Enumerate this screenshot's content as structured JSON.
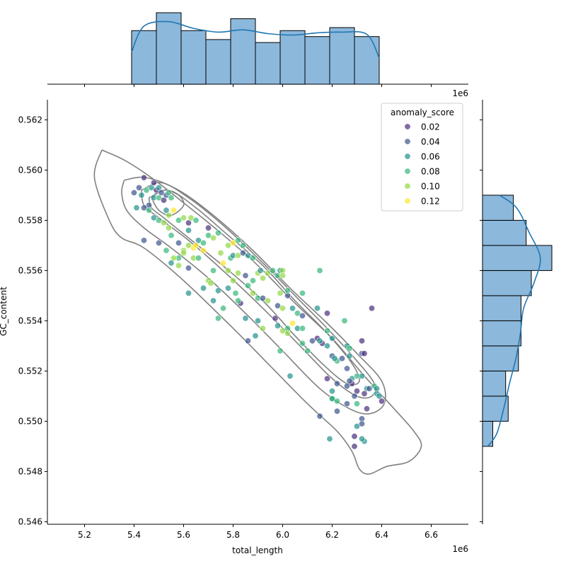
{
  "chart_data": {
    "type": "scatter",
    "xlabel": "total_length",
    "ylabel": "GC_content",
    "x_exponent_label": "1e6",
    "xlim": [
      5.05,
      6.75
    ],
    "ylim": [
      0.5459,
      0.5628
    ],
    "x_scale_factor": 1000000,
    "x_ticks": [
      5.2,
      5.4,
      5.6,
      5.8,
      6.0,
      6.2,
      6.4,
      6.6
    ],
    "x_tick_labels": [
      "5.2",
      "5.4",
      "5.6",
      "5.8",
      "6.0",
      "6.2",
      "6.4",
      "6.6"
    ],
    "y_ticks": [
      0.546,
      0.548,
      0.55,
      0.552,
      0.554,
      0.556,
      0.558,
      0.56,
      0.562
    ],
    "y_tick_labels": [
      "0.546",
      "0.548",
      "0.550",
      "0.552",
      "0.554",
      "0.556",
      "0.558",
      "0.560",
      "0.562"
    ],
    "grid": false,
    "hue": "anomaly_score",
    "colors": {
      "marginal_bar": "#8cb8db",
      "kde_line": "#1f77b4",
      "contour": "#808080",
      "bar_edge": "#000000"
    },
    "legend": {
      "title": "anomaly_score",
      "placement": "top-right",
      "entries": [
        {
          "label": "0.02",
          "value": 0.02,
          "color": "#472d7b"
        },
        {
          "label": "0.04",
          "value": 0.04,
          "color": "#3b528b"
        },
        {
          "label": "0.06",
          "value": 0.06,
          "color": "#21918c"
        },
        {
          "label": "0.08",
          "value": 0.08,
          "color": "#35b779"
        },
        {
          "label": "0.10",
          "value": 0.1,
          "color": "#90d743"
        },
        {
          "label": "0.12",
          "value": 0.12,
          "color": "#fde725"
        }
      ]
    },
    "marginal_x_hist": {
      "bin_edges": [
        5.39,
        5.49,
        5.59,
        5.69,
        5.79,
        5.89,
        5.99,
        6.09,
        6.19,
        6.29,
        6.39
      ],
      "counts": [
        18,
        24,
        18,
        15,
        22,
        14,
        18,
        16,
        19,
        16
      ]
    },
    "marginal_y_hist": {
      "bin_edges": [
        0.549,
        0.55,
        0.551,
        0.552,
        0.553,
        0.554,
        0.555,
        0.556,
        0.557,
        0.558,
        0.559
      ],
      "counts": [
        4,
        10,
        9,
        14,
        15,
        15,
        19,
        27,
        17,
        12
      ]
    },
    "contour_levels": [
      [
        [
          5.27,
          0.5608
        ],
        [
          5.36,
          0.5604
        ],
        [
          5.47,
          0.5597
        ],
        [
          5.6,
          0.5587
        ],
        [
          5.75,
          0.5575
        ],
        [
          5.9,
          0.5562
        ],
        [
          6.05,
          0.5547
        ],
        [
          6.2,
          0.5533
        ],
        [
          6.33,
          0.5518
        ],
        [
          6.45,
          0.5505
        ],
        [
          6.53,
          0.5496
        ],
        [
          6.56,
          0.549
        ],
        [
          6.51,
          0.5484
        ],
        [
          6.42,
          0.5482
        ],
        [
          6.35,
          0.5479
        ],
        [
          6.31,
          0.5481
        ],
        [
          6.28,
          0.5488
        ],
        [
          6.22,
          0.5496
        ],
        [
          6.1,
          0.5507
        ],
        [
          5.95,
          0.5522
        ],
        [
          5.8,
          0.5537
        ],
        [
          5.6,
          0.5556
        ],
        [
          5.44,
          0.5569
        ],
        [
          5.35,
          0.5573
        ],
        [
          5.3,
          0.558
        ],
        [
          5.24,
          0.5597
        ],
        [
          5.27,
          0.5608
        ]
      ],
      [
        [
          5.36,
          0.5596
        ],
        [
          5.45,
          0.5597
        ],
        [
          5.58,
          0.5592
        ],
        [
          5.72,
          0.5582
        ],
        [
          5.88,
          0.5568
        ],
        [
          6.03,
          0.5553
        ],
        [
          6.18,
          0.5539
        ],
        [
          6.3,
          0.5527
        ],
        [
          6.4,
          0.5516
        ],
        [
          6.41,
          0.5507
        ],
        [
          6.35,
          0.5503
        ],
        [
          6.27,
          0.5505
        ],
        [
          6.15,
          0.5513
        ],
        [
          6.0,
          0.5528
        ],
        [
          5.85,
          0.5543
        ],
        [
          5.7,
          0.5557
        ],
        [
          5.55,
          0.5569
        ],
        [
          5.44,
          0.5577
        ],
        [
          5.37,
          0.5584
        ],
        [
          5.35,
          0.5591
        ],
        [
          5.36,
          0.5596
        ]
      ],
      [
        [
          5.43,
          0.5592
        ],
        [
          5.51,
          0.5595
        ],
        [
          5.62,
          0.5589
        ],
        [
          5.76,
          0.5578
        ],
        [
          5.9,
          0.5565
        ],
        [
          6.05,
          0.555
        ],
        [
          6.18,
          0.5537
        ],
        [
          6.3,
          0.5524
        ],
        [
          6.37,
          0.5515
        ],
        [
          6.36,
          0.551
        ],
        [
          6.3,
          0.551
        ],
        [
          6.2,
          0.5517
        ],
        [
          6.07,
          0.553
        ],
        [
          5.92,
          0.5545
        ],
        [
          5.77,
          0.5559
        ],
        [
          5.62,
          0.5572
        ],
        [
          5.5,
          0.5581
        ],
        [
          5.44,
          0.5586
        ],
        [
          5.43,
          0.5592
        ]
      ],
      [
        [
          5.46,
          0.5589
        ],
        [
          5.54,
          0.5592
        ],
        [
          5.65,
          0.5585
        ],
        [
          5.78,
          0.5574
        ],
        [
          5.92,
          0.5562
        ],
        [
          6.05,
          0.5548
        ],
        [
          6.18,
          0.5535
        ],
        [
          6.28,
          0.5523
        ],
        [
          6.31,
          0.5516
        ],
        [
          6.26,
          0.5515
        ],
        [
          6.17,
          0.5522
        ],
        [
          6.05,
          0.5534
        ],
        [
          5.92,
          0.5548
        ],
        [
          5.77,
          0.5561
        ],
        [
          5.62,
          0.5573
        ],
        [
          5.52,
          0.5581
        ],
        [
          5.47,
          0.5585
        ],
        [
          5.46,
          0.5589
        ]
      ],
      [
        [
          5.47,
          0.5589
        ],
        [
          5.52,
          0.5592
        ],
        [
          5.58,
          0.559
        ],
        [
          5.6,
          0.5586
        ],
        [
          5.55,
          0.5582
        ],
        [
          5.5,
          0.5584
        ],
        [
          5.47,
          0.5589
        ]
      ]
    ],
    "points": [
      [
        5.4,
        0.5591,
        0.04
      ],
      [
        5.42,
        0.5593,
        0.04
      ],
      [
        5.44,
        0.5597,
        0.02
      ],
      [
        5.43,
        0.559,
        0.06
      ],
      [
        5.45,
        0.5592,
        0.08
      ],
      [
        5.47,
        0.5593,
        0.06
      ],
      [
        5.48,
        0.5589,
        0.06
      ],
      [
        5.46,
        0.5586,
        0.04
      ],
      [
        5.49,
        0.5592,
        0.02
      ],
      [
        5.5,
        0.5593,
        0.06
      ],
      [
        5.51,
        0.5591,
        0.04
      ],
      [
        5.48,
        0.5595,
        0.02
      ],
      [
        5.5,
        0.5589,
        0.08
      ],
      [
        5.52,
        0.5588,
        0.02
      ],
      [
        5.53,
        0.559,
        0.04
      ],
      [
        5.54,
        0.5591,
        0.08
      ],
      [
        5.55,
        0.5589,
        0.08
      ],
      [
        5.41,
        0.5585,
        0.06
      ],
      [
        5.44,
        0.5585,
        0.04
      ],
      [
        5.46,
        0.5584,
        0.08
      ],
      [
        5.48,
        0.5581,
        0.06
      ],
      [
        5.5,
        0.558,
        0.08
      ],
      [
        5.52,
        0.5579,
        0.1
      ],
      [
        5.54,
        0.5577,
        0.1
      ],
      [
        5.54,
        0.5582,
        0.1
      ],
      [
        5.53,
        0.5584,
        0.06
      ],
      [
        5.56,
        0.5584,
        0.12
      ],
      [
        5.58,
        0.558,
        0.08
      ],
      [
        5.6,
        0.5581,
        0.1
      ],
      [
        5.62,
        0.5579,
        0.02
      ],
      [
        5.63,
        0.5581,
        0.1
      ],
      [
        5.65,
        0.558,
        0.08
      ],
      [
        5.62,
        0.5576,
        0.06
      ],
      [
        5.55,
        0.5574,
        0.08
      ],
      [
        5.58,
        0.5571,
        0.04
      ],
      [
        5.6,
        0.5568,
        0.1
      ],
      [
        5.62,
        0.557,
        0.1
      ],
      [
        5.64,
        0.5569,
        0.12
      ],
      [
        5.66,
        0.5572,
        0.06
      ],
      [
        5.68,
        0.5571,
        0.08
      ],
      [
        5.7,
        0.5574,
        0.08
      ],
      [
        5.7,
        0.5577,
        0.02
      ],
      [
        5.72,
        0.5573,
        0.1
      ],
      [
        5.74,
        0.5575,
        0.08
      ],
      [
        5.68,
        0.5568,
        0.12
      ],
      [
        5.65,
        0.557,
        0.12
      ],
      [
        5.64,
        0.5565,
        0.1
      ],
      [
        5.6,
        0.5567,
        0.1
      ],
      [
        5.58,
        0.5565,
        0.08
      ],
      [
        5.58,
        0.5562,
        0.1
      ],
      [
        5.56,
        0.5565,
        0.1
      ],
      [
        5.53,
        0.5568,
        0.08
      ],
      [
        5.55,
        0.5563,
        0.06
      ],
      [
        5.44,
        0.5572,
        0.04
      ],
      [
        5.5,
        0.5571,
        0.04
      ],
      [
        5.62,
        0.5561,
        0.04
      ],
      [
        5.66,
        0.5565,
        0.08
      ],
      [
        5.7,
        0.5556,
        0.1
      ],
      [
        5.71,
        0.5555,
        0.1
      ],
      [
        5.68,
        0.5553,
        0.06
      ],
      [
        5.62,
        0.5551,
        0.06
      ],
      [
        5.72,
        0.5548,
        0.06
      ],
      [
        5.74,
        0.5552,
        0.06
      ],
      [
        5.76,
        0.5545,
        0.08
      ],
      [
        5.74,
        0.5541,
        0.08
      ],
      [
        5.72,
        0.556,
        0.08
      ],
      [
        5.75,
        0.5567,
        0.1
      ],
      [
        5.76,
        0.5563,
        0.12
      ],
      [
        5.78,
        0.556,
        0.1
      ],
      [
        5.79,
        0.5565,
        0.08
      ],
      [
        5.78,
        0.557,
        0.1
      ],
      [
        5.8,
        0.5571,
        0.12
      ],
      [
        5.82,
        0.5572,
        0.08
      ],
      [
        5.84,
        0.557,
        0.08
      ],
      [
        5.8,
        0.5566,
        0.06
      ],
      [
        5.82,
        0.5566,
        0.1
      ],
      [
        5.84,
        0.5567,
        0.04
      ],
      [
        5.86,
        0.5566,
        0.06
      ],
      [
        5.88,
        0.5565,
        0.08
      ],
      [
        5.78,
        0.5553,
        0.06
      ],
      [
        5.8,
        0.5556,
        0.1
      ],
      [
        5.82,
        0.5559,
        0.1
      ],
      [
        5.81,
        0.5551,
        0.08
      ],
      [
        5.83,
        0.5547,
        0.02
      ],
      [
        5.82,
        0.5548,
        0.08
      ],
      [
        5.85,
        0.5558,
        0.04
      ],
      [
        5.86,
        0.5554,
        0.08
      ],
      [
        5.88,
        0.5551,
        0.1
      ],
      [
        5.88,
        0.5556,
        0.08
      ],
      [
        5.9,
        0.5559,
        0.1
      ],
      [
        5.91,
        0.556,
        0.06
      ],
      [
        5.92,
        0.5557,
        0.1
      ],
      [
        5.94,
        0.5559,
        0.1
      ],
      [
        5.96,
        0.556,
        0.08
      ],
      [
        5.98,
        0.5558,
        0.08
      ],
      [
        5.99,
        0.556,
        0.06
      ],
      [
        6.0,
        0.556,
        0.1
      ],
      [
        6.0,
        0.5558,
        0.1
      ],
      [
        5.9,
        0.5549,
        0.08
      ],
      [
        5.92,
        0.5549,
        0.04
      ],
      [
        5.94,
        0.5548,
        0.1
      ],
      [
        5.98,
        0.5546,
        0.04
      ],
      [
        5.99,
        0.5551,
        0.1
      ],
      [
        6.0,
        0.5545,
        0.1
      ],
      [
        6.02,
        0.555,
        0.04
      ],
      [
        6.02,
        0.5552,
        0.08
      ],
      [
        6.04,
        0.5545,
        0.06
      ],
      [
        6.06,
        0.5543,
        0.08
      ],
      [
        6.08,
        0.5551,
        0.08
      ],
      [
        6.08,
        0.5542,
        0.04
      ],
      [
        5.9,
        0.554,
        0.06
      ],
      [
        5.92,
        0.5537,
        0.1
      ],
      [
        5.89,
        0.5534,
        0.06
      ],
      [
        5.86,
        0.5532,
        0.04
      ],
      [
        5.98,
        0.5538,
        0.06
      ],
      [
        6.0,
        0.5536,
        0.1
      ],
      [
        6.02,
        0.5537,
        0.08
      ],
      [
        6.02,
        0.5535,
        0.1
      ],
      [
        6.04,
        0.5539,
        0.12
      ],
      [
        6.06,
        0.5537,
        0.06
      ],
      [
        6.08,
        0.5537,
        0.08
      ],
      [
        6.08,
        0.5531,
        0.08
      ],
      [
        5.99,
        0.5528,
        0.08
      ],
      [
        6.1,
        0.5528,
        0.08
      ],
      [
        6.03,
        0.5518,
        0.06
      ],
      [
        6.12,
        0.5532,
        0.04
      ],
      [
        6.14,
        0.5545,
        0.06
      ],
      [
        6.15,
        0.556,
        0.08
      ],
      [
        6.14,
        0.5533,
        0.02
      ],
      [
        6.16,
        0.5531,
        0.02
      ],
      [
        6.18,
        0.5536,
        0.08
      ],
      [
        6.18,
        0.553,
        0.06
      ],
      [
        6.2,
        0.5533,
        0.06
      ],
      [
        6.2,
        0.5526,
        0.04
      ],
      [
        6.22,
        0.5524,
        0.08
      ],
      [
        6.24,
        0.5525,
        0.04
      ],
      [
        6.21,
        0.5525,
        0.06
      ],
      [
        6.18,
        0.5543,
        0.02
      ],
      [
        6.15,
        0.5532,
        0.06
      ],
      [
        6.25,
        0.554,
        0.08
      ],
      [
        6.26,
        0.553,
        0.06
      ],
      [
        6.27,
        0.5529,
        0.08
      ],
      [
        6.27,
        0.5526,
        0.06
      ],
      [
        6.26,
        0.5521,
        0.04
      ],
      [
        6.28,
        0.5517,
        0.06
      ],
      [
        6.3,
        0.5518,
        0.08
      ],
      [
        6.28,
        0.5515,
        0.02
      ],
      [
        6.3,
        0.5512,
        0.02
      ],
      [
        6.32,
        0.5518,
        0.06
      ],
      [
        6.32,
        0.5527,
        0.04
      ],
      [
        6.32,
        0.5532,
        0.02
      ],
      [
        6.33,
        0.5527,
        0.02
      ],
      [
        6.34,
        0.5513,
        0.06
      ],
      [
        6.33,
        0.5511,
        0.02
      ],
      [
        6.35,
        0.5513,
        0.04
      ],
      [
        6.36,
        0.5545,
        0.02
      ],
      [
        6.37,
        0.5514,
        0.08
      ],
      [
        6.38,
        0.5513,
        0.06
      ],
      [
        6.38,
        0.5511,
        0.06
      ],
      [
        6.39,
        0.551,
        0.06
      ],
      [
        6.4,
        0.5508,
        0.02
      ],
      [
        6.34,
        0.5505,
        0.02
      ],
      [
        6.26,
        0.5514,
        0.04
      ],
      [
        6.22,
        0.5515,
        0.04
      ],
      [
        6.2,
        0.5512,
        0.06
      ],
      [
        6.18,
        0.5517,
        0.02
      ],
      [
        6.2,
        0.5509,
        0.06
      ],
      [
        6.2,
        0.5509,
        0.08
      ],
      [
        6.22,
        0.5508,
        0.08
      ],
      [
        6.22,
        0.5504,
        0.04
      ],
      [
        6.26,
        0.5507,
        0.04
      ],
      [
        6.27,
        0.5516,
        0.04
      ],
      [
        6.29,
        0.551,
        0.04
      ],
      [
        6.3,
        0.5507,
        0.08
      ],
      [
        6.3,
        0.5498,
        0.06
      ],
      [
        6.32,
        0.5501,
        0.04
      ],
      [
        6.32,
        0.5499,
        0.04
      ],
      [
        6.33,
        0.5492,
        0.06
      ],
      [
        6.32,
        0.5493,
        0.06
      ],
      [
        6.29,
        0.5494,
        0.02
      ],
      [
        6.29,
        0.549,
        0.02
      ],
      [
        6.15,
        0.5502,
        0.04
      ],
      [
        6.19,
        0.5493,
        0.06
      ],
      [
        5.85,
        0.5541,
        0.06
      ],
      [
        5.97,
        0.5541,
        0.02
      ]
    ]
  }
}
